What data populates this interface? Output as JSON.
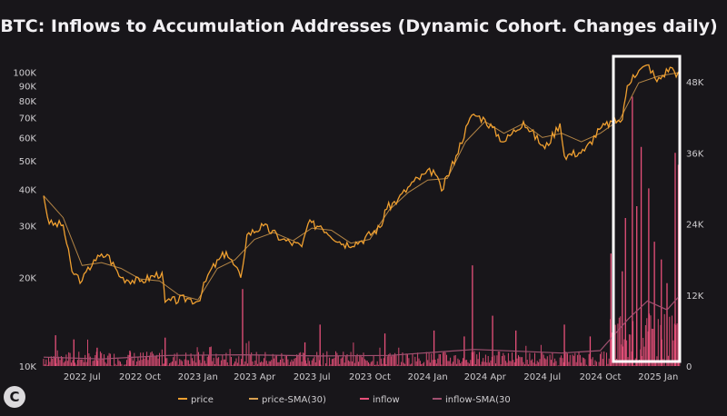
{
  "chart_data": {
    "type": "line",
    "title": "BTC: Inflows to Accumulation Addresses (Dynamic Cohort. Changes daily)",
    "x_tick_labels": [
      "2022 Jul",
      "2022 Oct",
      "2023 Jan",
      "2023 Apr",
      "2023 Jul",
      "2023 Oct",
      "2024 Jan",
      "2024 Apr",
      "2024 Jul",
      "2024 Oct",
      "2025 Jan"
    ],
    "x_ticks": [
      "2022-07-01",
      "2022-10-01",
      "2023-01-01",
      "2023-04-01",
      "2023-07-01",
      "2023-10-01",
      "2024-01-01",
      "2024-04-01",
      "2024-07-01",
      "2024-10-01",
      "2025-01-01"
    ],
    "xlim": [
      "2022-05-01",
      "2025-02-10"
    ],
    "y_left": {
      "scale": "log",
      "lim": [
        10000,
        115000
      ],
      "ticks": [
        10000,
        20000,
        30000,
        40000,
        50000,
        60000,
        70000,
        80000,
        90000,
        100000
      ],
      "tick_labels": [
        "10K",
        "20K",
        "30K",
        "40K",
        "50K",
        "60K",
        "70K",
        "80K",
        "90K",
        "100K"
      ]
    },
    "y_right": {
      "scale": "linear",
      "lim": [
        0,
        50000
      ],
      "ticks": [
        0,
        12000,
        24000,
        36000,
        48000
      ],
      "tick_labels": [
        "0",
        "12K",
        "24K",
        "36K",
        "48K"
      ]
    },
    "grid": false,
    "legend_position": "bottom",
    "series": [
      {
        "name": "price",
        "axis": "left",
        "color": "#f0a030",
        "points": [
          [
            "2022-05-01",
            38000
          ],
          [
            "2022-05-10",
            30500
          ],
          [
            "2022-06-01",
            30200
          ],
          [
            "2022-06-15",
            21000
          ],
          [
            "2022-07-01",
            19500
          ],
          [
            "2022-07-20",
            23000
          ],
          [
            "2022-08-10",
            24000
          ],
          [
            "2022-09-01",
            20000
          ],
          [
            "2022-10-01",
            19400
          ],
          [
            "2022-11-05",
            20800
          ],
          [
            "2022-11-10",
            16500
          ],
          [
            "2022-12-15",
            17000
          ],
          [
            "2023-01-01",
            16600
          ],
          [
            "2023-01-20",
            21000
          ],
          [
            "2023-02-15",
            24500
          ],
          [
            "2023-03-10",
            20000
          ],
          [
            "2023-03-20",
            28000
          ],
          [
            "2023-04-15",
            30000
          ],
          [
            "2023-05-15",
            27000
          ],
          [
            "2023-06-15",
            25500
          ],
          [
            "2023-06-25",
            30500
          ],
          [
            "2023-07-15",
            30000
          ],
          [
            "2023-08-20",
            26000
          ],
          [
            "2023-09-15",
            26500
          ],
          [
            "2023-10-20",
            30000
          ],
          [
            "2023-10-25",
            34000
          ],
          [
            "2023-11-15",
            37000
          ],
          [
            "2023-12-10",
            42500
          ],
          [
            "2024-01-10",
            46500
          ],
          [
            "2024-01-23",
            39500
          ],
          [
            "2024-02-15",
            52000
          ],
          [
            "2024-03-05",
            67000
          ],
          [
            "2024-03-14",
            72000
          ],
          [
            "2024-04-01",
            69000
          ],
          [
            "2024-05-01",
            58000
          ],
          [
            "2024-06-01",
            68000
          ],
          [
            "2024-07-05",
            55000
          ],
          [
            "2024-07-29",
            67000
          ],
          [
            "2024-08-05",
            52000
          ],
          [
            "2024-09-06",
            54000
          ],
          [
            "2024-09-30",
            64000
          ],
          [
            "2024-10-20",
            68000
          ],
          [
            "2024-11-05",
            69000
          ],
          [
            "2024-11-13",
            90000
          ],
          [
            "2024-11-22",
            98000
          ],
          [
            "2024-12-17",
            106000
          ],
          [
            "2024-12-30",
            93000
          ],
          [
            "2025-01-20",
            104000
          ],
          [
            "2025-02-05",
            97000
          ]
        ]
      },
      {
        "name": "price-SMA(30)",
        "axis": "left",
        "color": "#d9a050",
        "points": [
          [
            "2022-05-01",
            38000
          ],
          [
            "2022-06-01",
            32000
          ],
          [
            "2022-07-01",
            22000
          ],
          [
            "2022-08-01",
            22500
          ],
          [
            "2022-09-01",
            21500
          ],
          [
            "2022-10-01",
            19800
          ],
          [
            "2022-11-01",
            19500
          ],
          [
            "2022-12-01",
            17500
          ],
          [
            "2023-01-01",
            16800
          ],
          [
            "2023-02-01",
            21500
          ],
          [
            "2023-03-01",
            23000
          ],
          [
            "2023-04-01",
            27000
          ],
          [
            "2023-05-01",
            28500
          ],
          [
            "2023-06-01",
            26700
          ],
          [
            "2023-07-01",
            29500
          ],
          [
            "2023-08-01",
            29000
          ],
          [
            "2023-09-01",
            26200
          ],
          [
            "2023-10-01",
            27000
          ],
          [
            "2023-11-01",
            34000
          ],
          [
            "2023-12-01",
            39000
          ],
          [
            "2024-01-01",
            43000
          ],
          [
            "2024-02-01",
            43500
          ],
          [
            "2024-03-01",
            58000
          ],
          [
            "2024-04-01",
            68000
          ],
          [
            "2024-05-01",
            62000
          ],
          [
            "2024-06-01",
            67000
          ],
          [
            "2024-07-01",
            60000
          ],
          [
            "2024-08-01",
            62000
          ],
          [
            "2024-09-01",
            58000
          ],
          [
            "2024-10-01",
            62000
          ],
          [
            "2024-11-01",
            69000
          ],
          [
            "2024-12-01",
            92000
          ],
          [
            "2025-01-01",
            97000
          ],
          [
            "2025-02-05",
            100000
          ]
        ]
      },
      {
        "name": "inflow",
        "axis": "right",
        "color": "#e8507a",
        "spikes": [
          [
            "2022-05-20",
            5200
          ],
          [
            "2022-06-18",
            4500
          ],
          [
            "2022-07-25",
            3100
          ],
          [
            "2022-09-15",
            2600
          ],
          [
            "2022-11-10",
            4800
          ],
          [
            "2023-01-20",
            3200
          ],
          [
            "2023-03-13",
            13000
          ],
          [
            "2023-06-20",
            4000
          ],
          [
            "2023-07-14",
            7000
          ],
          [
            "2023-10-25",
            5500
          ],
          [
            "2024-01-11",
            6000
          ],
          [
            "2024-02-28",
            5000
          ],
          [
            "2024-03-12",
            17000
          ],
          [
            "2024-04-13",
            8500
          ],
          [
            "2024-05-20",
            6000
          ],
          [
            "2024-08-05",
            7000
          ],
          [
            "2024-09-15",
            5000
          ],
          [
            "2024-10-18",
            19000
          ],
          [
            "2024-11-05",
            16000
          ],
          [
            "2024-11-10",
            25000
          ],
          [
            "2024-11-21",
            45500
          ],
          [
            "2024-11-28",
            27000
          ],
          [
            "2024-12-05",
            37000
          ],
          [
            "2024-12-17",
            30000
          ],
          [
            "2024-12-26",
            21000
          ],
          [
            "2025-01-06",
            18000
          ],
          [
            "2025-01-15",
            14000
          ],
          [
            "2025-01-28",
            36000
          ],
          [
            "2025-02-02",
            34000
          ]
        ]
      },
      {
        "name": "inflow-SMA(30",
        "axis": "right",
        "color": "#a05070",
        "points": [
          [
            "2022-05-01",
            1500
          ],
          [
            "2022-08-01",
            1200
          ],
          [
            "2022-11-15",
            1800
          ],
          [
            "2023-03-15",
            1900
          ],
          [
            "2023-07-15",
            1700
          ],
          [
            "2023-11-01",
            1800
          ],
          [
            "2024-03-15",
            2800
          ],
          [
            "2024-08-01",
            2200
          ],
          [
            "2024-10-01",
            2600
          ],
          [
            "2024-11-15",
            8000
          ],
          [
            "2024-12-15",
            11000
          ],
          [
            "2025-01-15",
            9500
          ],
          [
            "2025-02-05",
            12000
          ]
        ]
      }
    ],
    "annotations": [
      {
        "type": "highlight-rectangle",
        "color": "#ffffff",
        "x_range": [
          "2024-11-01",
          "2025-02-10"
        ]
      }
    ]
  }
}
